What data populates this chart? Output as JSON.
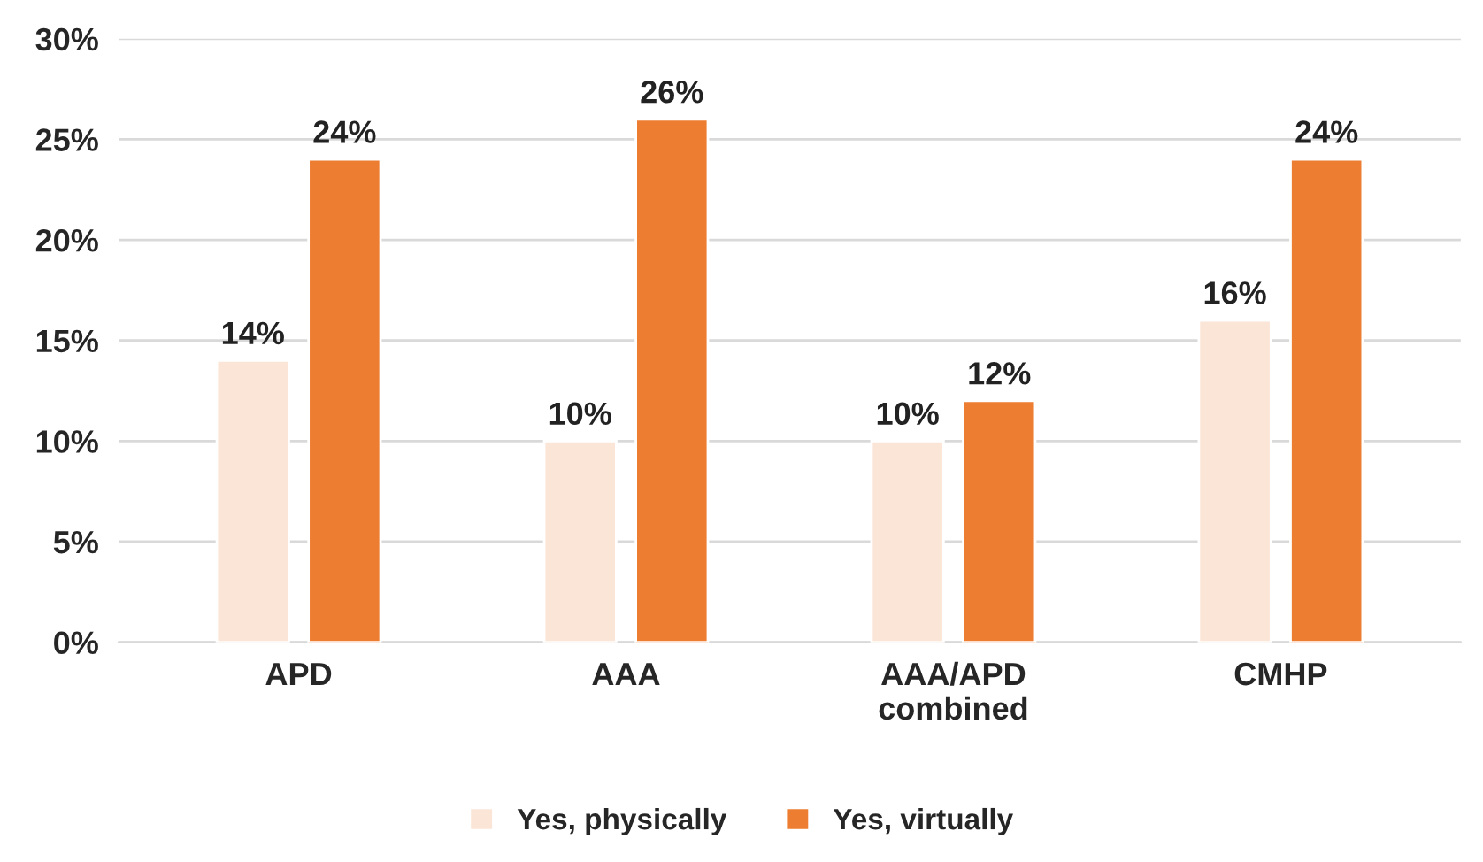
{
  "chart_data": {
    "type": "bar",
    "categories": [
      "APD",
      "AAA",
      "AAA/APD\ncombined",
      "CMHP"
    ],
    "series": [
      {
        "name": "Yes, physically",
        "color": "#fbe5d6",
        "values": [
          14,
          10,
          10,
          16
        ],
        "value_labels": [
          "14%",
          "10%",
          "10%",
          "16%"
        ]
      },
      {
        "name": "Yes, virtually",
        "color": "#ed7d31",
        "values": [
          24,
          26,
          12,
          24
        ],
        "value_labels": [
          "24%",
          "26%",
          "12%",
          "24%"
        ]
      }
    ],
    "ylim": [
      0,
      30
    ],
    "yticks": [
      {
        "value": 0,
        "label": "0%"
      },
      {
        "value": 5,
        "label": "5%"
      },
      {
        "value": 10,
        "label": "10%"
      },
      {
        "value": 15,
        "label": "15%"
      },
      {
        "value": 20,
        "label": "20%"
      },
      {
        "value": 25,
        "label": "25%"
      },
      {
        "value": 30,
        "label": "30%"
      }
    ],
    "grid": "y",
    "legend": "bottom"
  }
}
